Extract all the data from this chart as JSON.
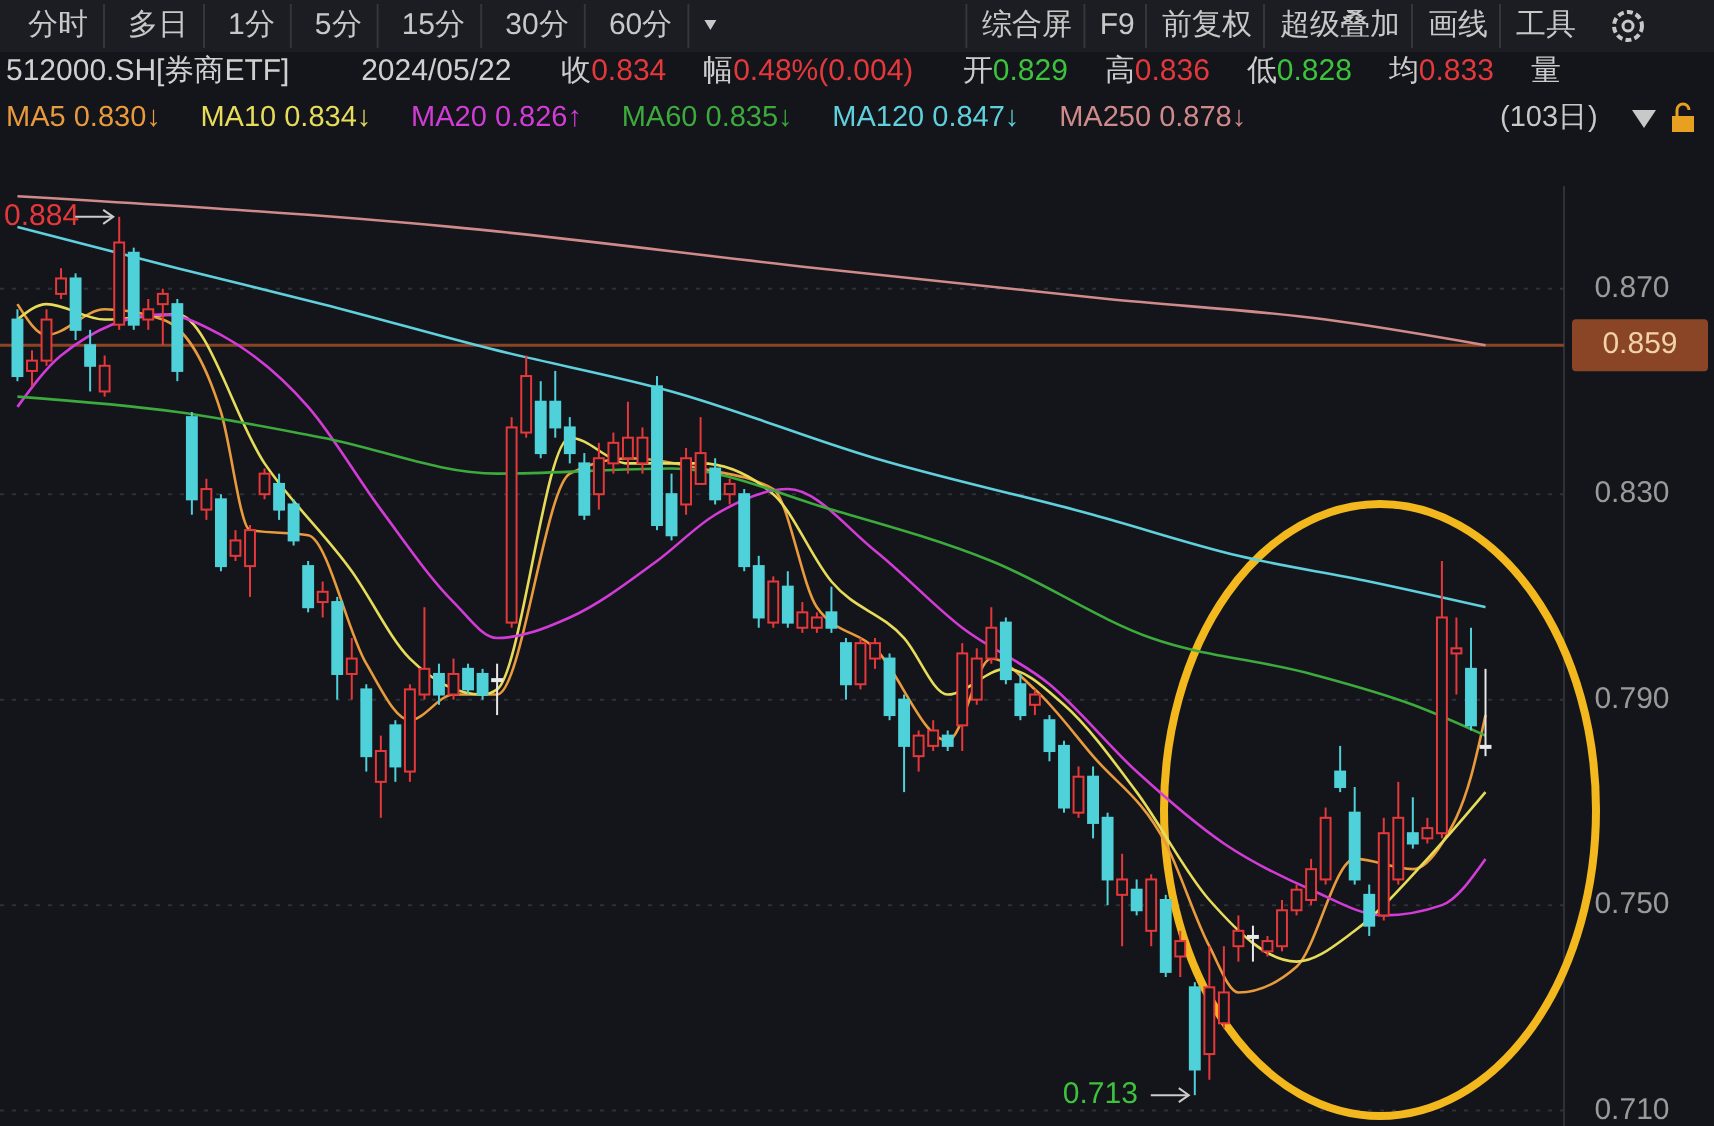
{
  "chart_data": {
    "type": "candlestick",
    "title": "512000.SH[券商ETF]",
    "subtitle": "2024/05/22",
    "categories": [
      null,
      null,
      null,
      null,
      null,
      null,
      null,
      null,
      null,
      null,
      null,
      null,
      null,
      null,
      null,
      null,
      null,
      null,
      null,
      null,
      null,
      null,
      null,
      null,
      null,
      null,
      null,
      null,
      null,
      null,
      null,
      null,
      null,
      null,
      null,
      null,
      null,
      null,
      null,
      null,
      null,
      null,
      null,
      null,
      null,
      null,
      null,
      null,
      null,
      null,
      null,
      null,
      null,
      null,
      null,
      null,
      null,
      null,
      null,
      null,
      null,
      null,
      null,
      null,
      null,
      null,
      null,
      null,
      null,
      null,
      null,
      null,
      null,
      null,
      null,
      null,
      null,
      null,
      null,
      null,
      null,
      null,
      null,
      null,
      null,
      null,
      null,
      null,
      null,
      null,
      null,
      null,
      null,
      null,
      null,
      null,
      null,
      null,
      null,
      null,
      null,
      null
    ],
    "ohlc": [
      [
        0.864,
        0.866,
        0.852,
        0.853
      ],
      [
        0.854,
        0.858,
        0.851,
        0.856
      ],
      [
        0.856,
        0.866,
        0.855,
        0.864
      ],
      [
        0.869,
        0.874,
        0.868,
        0.872
      ],
      [
        0.872,
        0.873,
        0.86,
        0.862
      ],
      [
        0.859,
        0.862,
        0.85,
        0.855
      ],
      [
        0.85,
        0.857,
        0.849,
        0.855
      ],
      [
        0.863,
        0.884,
        0.862,
        0.879
      ],
      [
        0.877,
        0.878,
        0.862,
        0.863
      ],
      [
        0.864,
        0.868,
        0.862,
        0.866
      ],
      [
        0.867,
        0.87,
        0.859,
        0.869
      ],
      [
        0.867,
        0.868,
        0.852,
        0.854
      ],
      [
        0.845,
        0.846,
        0.826,
        0.829
      ],
      [
        0.827,
        0.833,
        0.825,
        0.831
      ],
      [
        0.829,
        0.83,
        0.815,
        0.816
      ],
      [
        0.818,
        0.823,
        0.817,
        0.821
      ],
      [
        0.816,
        0.824,
        0.81,
        0.823
      ],
      [
        0.83,
        0.835,
        0.829,
        0.834
      ],
      [
        0.832,
        0.834,
        0.825,
        0.827
      ],
      [
        0.828,
        0.829,
        0.82,
        0.821
      ],
      [
        0.816,
        0.817,
        0.807,
        0.808
      ],
      [
        0.809,
        0.813,
        0.806,
        0.811
      ],
      [
        0.809,
        0.81,
        0.79,
        0.795
      ],
      [
        0.795,
        0.802,
        0.79,
        0.798
      ],
      [
        0.792,
        0.793,
        0.776,
        0.779
      ],
      [
        0.774,
        0.783,
        0.767,
        0.78
      ],
      [
        0.785,
        0.786,
        0.774,
        0.777
      ],
      [
        0.776,
        0.793,
        0.774,
        0.792
      ],
      [
        0.791,
        0.808,
        0.79,
        0.796
      ],
      [
        0.795,
        0.797,
        0.789,
        0.791
      ],
      [
        0.791,
        0.798,
        0.79,
        0.795
      ],
      [
        0.796,
        0.797,
        0.791,
        0.792
      ],
      [
        0.795,
        0.796,
        0.79,
        0.791
      ],
      [
        0.794,
        0.797,
        0.787,
        0.794
      ],
      [
        0.805,
        0.845,
        0.804,
        0.843
      ],
      [
        0.842,
        0.857,
        0.841,
        0.853
      ],
      [
        0.848,
        0.852,
        0.837,
        0.838
      ],
      [
        0.848,
        0.854,
        0.841,
        0.843
      ],
      [
        0.843,
        0.845,
        0.836,
        0.838
      ],
      [
        0.836,
        0.838,
        0.825,
        0.826
      ],
      [
        0.83,
        0.84,
        0.827,
        0.837
      ],
      [
        0.836,
        0.842,
        0.834,
        0.84
      ],
      [
        0.837,
        0.848,
        0.834,
        0.841
      ],
      [
        0.836,
        0.843,
        0.834,
        0.841
      ],
      [
        0.851,
        0.853,
        0.823,
        0.824
      ],
      [
        0.83,
        0.834,
        0.821,
        0.822
      ],
      [
        0.828,
        0.839,
        0.826,
        0.837
      ],
      [
        0.832,
        0.845,
        0.832,
        0.838
      ],
      [
        0.835,
        0.837,
        0.828,
        0.829
      ],
      [
        0.83,
        0.833,
        0.828,
        0.832
      ],
      [
        0.83,
        0.831,
        0.815,
        0.816
      ],
      [
        0.816,
        0.818,
        0.804,
        0.806
      ],
      [
        0.805,
        0.814,
        0.804,
        0.813
      ],
      [
        0.812,
        0.815,
        0.804,
        0.805
      ],
      [
        0.804,
        0.809,
        0.803,
        0.807
      ],
      [
        0.804,
        0.807,
        0.803,
        0.806
      ],
      [
        0.807,
        0.812,
        0.803,
        0.804
      ],
      [
        0.801,
        0.802,
        0.79,
        0.793
      ],
      [
        0.793,
        0.802,
        0.792,
        0.801
      ],
      [
        0.798,
        0.802,
        0.796,
        0.801
      ],
      [
        0.798,
        0.799,
        0.786,
        0.787
      ],
      [
        0.79,
        0.791,
        0.772,
        0.781
      ],
      [
        0.779,
        0.784,
        0.776,
        0.783
      ],
      [
        0.781,
        0.786,
        0.78,
        0.784
      ],
      [
        0.783,
        0.784,
        0.78,
        0.781
      ],
      [
        0.785,
        0.801,
        0.78,
        0.799
      ],
      [
        0.79,
        0.8,
        0.789,
        0.798
      ],
      [
        0.798,
        0.808,
        0.797,
        0.804
      ],
      [
        0.805,
        0.806,
        0.793,
        0.794
      ],
      [
        0.793,
        0.795,
        0.786,
        0.787
      ],
      [
        0.789,
        0.792,
        0.787,
        0.791
      ],
      [
        0.786,
        0.787,
        0.778,
        0.78
      ],
      [
        0.781,
        0.782,
        0.768,
        0.769
      ],
      [
        0.768,
        0.777,
        0.767,
        0.775
      ],
      [
        0.775,
        0.777,
        0.763,
        0.766
      ],
      [
        0.767,
        0.768,
        0.75,
        0.755
      ],
      [
        0.752,
        0.76,
        0.742,
        0.755
      ],
      [
        0.753,
        0.755,
        0.748,
        0.749
      ],
      [
        0.745,
        0.756,
        0.742,
        0.755
      ],
      [
        0.751,
        0.752,
        0.736,
        0.737
      ],
      [
        0.74,
        0.745,
        0.736,
        0.743
      ],
      [
        0.734,
        0.735,
        0.713,
        0.718
      ],
      [
        0.721,
        0.742,
        0.716,
        0.734
      ],
      [
        0.727,
        0.742,
        0.726,
        0.733
      ],
      [
        0.742,
        0.748,
        0.739,
        0.745
      ],
      [
        0.744,
        0.746,
        0.739,
        0.744
      ],
      [
        0.741,
        0.744,
        0.74,
        0.743
      ],
      [
        0.742,
        0.751,
        0.741,
        0.749
      ],
      [
        0.749,
        0.754,
        0.748,
        0.753
      ],
      [
        0.751,
        0.759,
        0.75,
        0.757
      ],
      [
        0.755,
        0.769,
        0.754,
        0.767
      ],
      [
        0.776,
        0.781,
        0.772,
        0.773
      ],
      [
        0.768,
        0.773,
        0.754,
        0.755
      ],
      [
        0.752,
        0.754,
        0.744,
        0.746
      ],
      [
        0.748,
        0.767,
        0.747,
        0.764
      ],
      [
        0.755,
        0.774,
        0.754,
        0.767
      ],
      [
        0.764,
        0.771,
        0.761,
        0.762
      ],
      [
        0.763,
        0.767,
        0.762,
        0.765
      ],
      [
        0.764,
        0.817,
        0.763,
        0.806
      ],
      [
        0.799,
        0.806,
        0.791,
        0.8
      ],
      [
        0.796,
        0.804,
        0.784,
        0.785
      ],
      [
        0.781,
        0.796,
        0.779,
        0.781
      ]
    ],
    "colors": [
      "#4fd1d9",
      "#e5383b",
      "#e5383b",
      "#e5383b",
      "#4fd1d9",
      "#4fd1d9",
      "#e5383b",
      "#e5383b",
      "#4fd1d9",
      "#e5383b",
      "#e5383b",
      "#4fd1d9",
      "#4fd1d9",
      "#e5383b",
      "#4fd1d9",
      "#e5383b",
      "#e5383b",
      "#e5383b",
      "#4fd1d9",
      "#4fd1d9",
      "#4fd1d9",
      "#e5383b",
      "#4fd1d9",
      "#e5383b",
      "#4fd1d9",
      "#e5383b",
      "#4fd1d9",
      "#e5383b",
      "#e5383b",
      "#4fd1d9",
      "#e5383b",
      "#4fd1d9",
      "#4fd1d9",
      "#e8e8e8",
      "#e5383b",
      "#e5383b",
      "#4fd1d9",
      "#4fd1d9",
      "#4fd1d9",
      "#4fd1d9",
      "#e5383b",
      "#e5383b",
      "#e5383b",
      "#e5383b",
      "#4fd1d9",
      "#4fd1d9",
      "#e5383b",
      "#e5383b",
      "#4fd1d9",
      "#e5383b",
      "#4fd1d9",
      "#4fd1d9",
      "#e5383b",
      "#4fd1d9",
      "#e5383b",
      "#e5383b",
      "#4fd1d9",
      "#4fd1d9",
      "#e5383b",
      "#e5383b",
      "#4fd1d9",
      "#4fd1d9",
      "#e5383b",
      "#e5383b",
      "#4fd1d9",
      "#e5383b",
      "#e5383b",
      "#e5383b",
      "#4fd1d9",
      "#4fd1d9",
      "#e5383b",
      "#4fd1d9",
      "#4fd1d9",
      "#e5383b",
      "#4fd1d9",
      "#4fd1d9",
      "#e5383b",
      "#4fd1d9",
      "#e5383b",
      "#4fd1d9",
      "#e5383b",
      "#4fd1d9",
      "#e5383b",
      "#e5383b",
      "#e5383b",
      "#e8e8e8",
      "#e5383b",
      "#e5383b",
      "#e5383b",
      "#e5383b",
      "#e5383b",
      "#4fd1d9",
      "#4fd1d9",
      "#4fd1d9",
      "#e5383b",
      "#e5383b",
      "#4fd1d9",
      "#e5383b",
      "#e5383b",
      "#e5383b",
      "#4fd1d9",
      "#e8e8e8"
    ],
    "series": [
      {
        "type": "line",
        "name": "MA5 0.830↓",
        "color": "#e89a3c",
        "values": [
          0.867,
          null,
          0.861,
          null,
          null,
          null,
          0.866,
          null,
          null,
          null,
          0.864,
          null,
          null,
          null,
          0.846,
          null,
          0.823,
          null,
          null,
          null,
          0.822,
          null,
          null,
          null,
          0.797,
          null,
          null,
          0.786,
          null,
          null,
          0.791,
          null,
          null,
          0.791,
          null,
          null,
          null,
          null,
          0.834,
          null,
          null,
          null,
          0.837,
          null,
          null,
          null,
          null,
          0.835,
          null,
          null,
          null,
          null,
          0.831,
          null,
          null,
          0.808,
          null,
          null,
          null,
          0.8,
          null,
          null,
          null,
          null,
          0.782,
          null,
          null,
          0.798,
          null,
          null,
          0.792,
          null,
          null,
          null,
          0.779,
          null,
          null,
          null,
          null,
          0.762,
          null,
          null,
          0.742,
          null,
          0.733,
          null,
          null,
          null,
          0.738,
          null,
          null,
          null,
          0.759,
          null,
          null,
          null,
          0.757,
          null,
          0.762,
          null,
          0.775,
          0.787
        ]
      },
      {
        "type": "line",
        "name": "MA10 0.834↓",
        "color": "#e6dc5a",
        "values": [
          0.864,
          null,
          0.867,
          null,
          null,
          null,
          0.864,
          null,
          null,
          null,
          null,
          0.865,
          null,
          null,
          null,
          null,
          null,
          0.836,
          null,
          null,
          null,
          null,
          null,
          0.815,
          null,
          null,
          null,
          0.798,
          null,
          null,
          null,
          null,
          0.791,
          0.792,
          null,
          null,
          null,
          null,
          0.841,
          null,
          null,
          null,
          0.836,
          null,
          null,
          null,
          null,
          0.836,
          null,
          null,
          null,
          null,
          0.83,
          null,
          null,
          null,
          0.813,
          null,
          null,
          null,
          null,
          0.802,
          null,
          null,
          0.791,
          null,
          null,
          null,
          0.796,
          null,
          null,
          null,
          0.789,
          null,
          null,
          null,
          null,
          0.772,
          null,
          null,
          null,
          null,
          0.751,
          null,
          null,
          null,
          null,
          null,
          0.739,
          null,
          null,
          null,
          0.745,
          null,
          null,
          null,
          null,
          0.759,
          null,
          null,
          null,
          0.772
        ]
      },
      {
        "type": "line",
        "name": "MA20 0.826↑",
        "color": "#d23cd6",
        "values": [
          0.847,
          null,
          null,
          0.857,
          null,
          null,
          null,
          null,
          null,
          null,
          0.865,
          null,
          null,
          null,
          0.861,
          null,
          null,
          null,
          null,
          null,
          0.847,
          null,
          null,
          null,
          null,
          0.827,
          null,
          null,
          null,
          null,
          0.809,
          null,
          null,
          0.802,
          null,
          null,
          null,
          null,
          0.806,
          null,
          null,
          null,
          null,
          null,
          0.817,
          null,
          null,
          null,
          0.826,
          null,
          null,
          null,
          null,
          0.831,
          null,
          null,
          null,
          null,
          null,
          0.819,
          null,
          null,
          null,
          null,
          null,
          0.804,
          null,
          null,
          null,
          null,
          null,
          0.793,
          null,
          null,
          null,
          null,
          null,
          0.776,
          null,
          null,
          null,
          null,
          null,
          0.762,
          null,
          null,
          null,
          null,
          null,
          0.753,
          null,
          null,
          null,
          null,
          0.748,
          null,
          null,
          null,
          0.75,
          null,
          null,
          0.759
        ]
      },
      {
        "type": "line",
        "name": "MA60 0.835↓",
        "color": "#3caa3c",
        "values": [
          0.849,
          null,
          null,
          null,
          null,
          null,
          null,
          null,
          null,
          null,
          null,
          0.846,
          null,
          null,
          null,
          null,
          null,
          null,
          null,
          null,
          null,
          0.841,
          null,
          null,
          null,
          null,
          null,
          null,
          null,
          null,
          null,
          null,
          null,
          0.834,
          null,
          null,
          null,
          null,
          null,
          null,
          null,
          null,
          null,
          null,
          null,
          0.835,
          null,
          null,
          null,
          null,
          null,
          null,
          null,
          null,
          null,
          null,
          0.827,
          null,
          null,
          null,
          null,
          null,
          null,
          null,
          null,
          null,
          null,
          0.817,
          null,
          null,
          null,
          null,
          null,
          null,
          null,
          null,
          null,
          null,
          0.802,
          null,
          null,
          null,
          null,
          null,
          null,
          null,
          null,
          null,
          null,
          0.795,
          null,
          null,
          null,
          null,
          null,
          null,
          0.789,
          null,
          null,
          null,
          null,
          0.783
        ]
      },
      {
        "type": "line",
        "name": "MA120 0.847↓",
        "color": "#5fd0dc",
        "values": [
          0.882,
          null,
          null,
          null,
          null,
          null,
          null,
          null,
          null,
          null,
          null,
          0.874,
          null,
          null,
          null,
          null,
          null,
          null,
          null,
          null,
          null,
          0.867,
          null,
          null,
          null,
          null,
          null,
          null,
          null,
          null,
          null,
          null,
          null,
          0.858,
          null,
          null,
          null,
          null,
          null,
          null,
          null,
          null,
          null,
          null,
          null,
          0.85,
          null,
          null,
          null,
          null,
          null,
          null,
          null,
          null,
          null,
          null,
          null,
          null,
          null,
          0.837,
          null,
          null,
          null,
          null,
          null,
          null,
          null,
          null,
          null,
          null,
          null,
          null,
          null,
          null,
          0.826,
          null,
          null,
          null,
          null,
          null,
          null,
          null,
          null,
          null,
          0.818,
          null,
          null,
          null,
          null,
          null,
          null,
          null,
          null,
          0.813,
          null,
          null,
          null,
          null,
          null,
          null,
          null,
          0.808
        ]
      },
      {
        "type": "line",
        "name": "MA250 0.878↓",
        "color": "#d08a8a",
        "values": [
          0.888,
          null,
          null,
          null,
          null,
          null,
          null,
          null,
          null,
          null,
          null,
          null,
          null,
          null,
          null,
          null,
          null,
          null,
          null,
          null,
          null,
          null,
          null,
          null,
          null,
          null,
          null,
          null,
          null,
          null,
          0.882,
          null,
          null,
          null,
          null,
          null,
          null,
          null,
          null,
          null,
          null,
          null,
          null,
          null,
          null,
          null,
          null,
          null,
          null,
          null,
          null,
          null,
          null,
          null,
          null,
          0.874,
          null,
          null,
          null,
          null,
          null,
          null,
          null,
          null,
          null,
          null,
          null,
          null,
          null,
          null,
          null,
          null,
          null,
          null,
          null,
          0.868,
          null,
          null,
          null,
          null,
          null,
          null,
          null,
          null,
          null,
          null,
          null,
          null,
          null,
          null,
          0.864,
          null,
          null,
          null,
          null,
          null,
          null,
          null,
          null,
          null,
          null,
          0.859
        ]
      }
    ],
    "ylim": [
      0.707,
      0.89
    ],
    "yticks": [
      {
        "value": 0.71,
        "label": "0.710"
      },
      {
        "value": 0.75,
        "label": "0.750"
      },
      {
        "value": 0.79,
        "label": "0.790"
      },
      {
        "value": 0.83,
        "label": "0.830"
      },
      {
        "value": 0.87,
        "label": "0.870"
      }
    ],
    "ref_lines": [
      {
        "axis": "y",
        "value": 0.859,
        "label": "0.859",
        "color": "#8a4526"
      }
    ],
    "grid": "y",
    "legend": "top",
    "annotations": [
      "分时",
      "多日",
      "1分",
      "5分",
      "15分",
      "30分",
      "60分",
      "综合屏",
      "F9",
      "前复权",
      "超级叠加",
      "画线",
      "工具",
      "收0.834",
      "幅0.48%(0.004)",
      "开0.829",
      "高0.836",
      "低0.828",
      "均0.833",
      "量",
      "(103日)",
      "0.884",
      "0.713"
    ]
  }
}
